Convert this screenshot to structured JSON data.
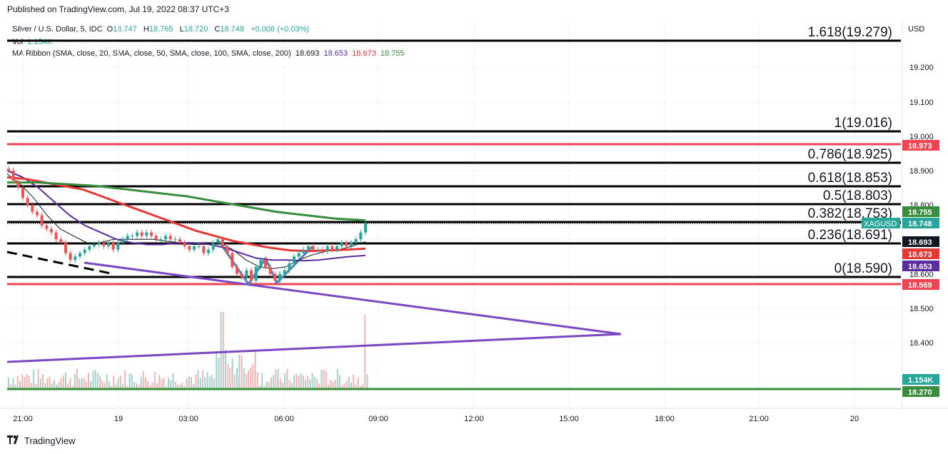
{
  "header": {
    "published": "Published on TradingView.com, Jul 19, 2022 08:37 UTC+3"
  },
  "legend": {
    "symbol": "Silver / U.S. Dollar, 5, IDC",
    "o_label": "O",
    "o": "18.747",
    "h_label": "H",
    "h": "18.765",
    "l_label": "L",
    "l": "18.720",
    "c_label": "C",
    "c": "18.748",
    "change": "+0.006 (+0.03%)",
    "vol_label": "Vol",
    "vol": "1.154K",
    "ma_label": "MA Ribbon (SMA, close, 20, SMA, close, 50, SMA, close, 100, SMA, close, 200)",
    "ma_values": [
      "18.693",
      "18.653",
      "18.673",
      "18.755"
    ]
  },
  "footer": {
    "brand": "TradingView"
  },
  "colors": {
    "up": "#26a69a",
    "down": "#ef5350",
    "ma20": "#131722",
    "ma50": "#5b2c9f",
    "ma100": "#e53935",
    "ma200": "#388e3c",
    "fib": "#000000",
    "support": "#ef4452",
    "trend": "#7b47c2",
    "pattern": "#4f7fc4"
  },
  "chart_data": {
    "type": "candlestick",
    "symbol": "XAGUSD",
    "currency": "USD",
    "timeframe": "5",
    "ylim": [
      18.2,
      19.3
    ],
    "y_ticks": [
      "19.200",
      "19.100",
      "19.000",
      "18.900",
      "18.800",
      "18.700",
      "18.600",
      "18.500",
      "18.400"
    ],
    "x_ticks": [
      "21:00",
      "19",
      "03:00",
      "06:00",
      "09:00",
      "12:00",
      "15:00",
      "18:00",
      "21:00",
      "20"
    ],
    "fib_levels": [
      {
        "label": "1.618(19.279)",
        "price": 19.279
      },
      {
        "label": "1(19.016)",
        "price": 19.016
      },
      {
        "label": "0.786(18.925)",
        "price": 18.925
      },
      {
        "label": "0.618(18.853)",
        "price": 18.853
      },
      {
        "label": "0.5(18.803)",
        "price": 18.803
      },
      {
        "label": "0.382(18.753)",
        "price": 18.753
      },
      {
        "label": "0.236(18.691)",
        "price": 18.691
      },
      {
        "label": "0(18.590)",
        "price": 18.59
      }
    ],
    "horizontal_lines": [
      {
        "price": 18.973,
        "color": "#ef4452"
      },
      {
        "price": 18.569,
        "color": "#ef4452"
      },
      {
        "price": 18.27,
        "color": "#388e3c"
      }
    ],
    "price_tags": [
      {
        "text": "18.973",
        "price": 18.973,
        "color": "#ef4452"
      },
      {
        "text": "18.755",
        "price": 18.755,
        "color": "#388e3c"
      },
      {
        "text": "18.748",
        "price": 18.748,
        "color": "#26a69a"
      },
      {
        "text": "18.693",
        "price": 18.693,
        "color": "#131722"
      },
      {
        "text": "18.673",
        "price": 18.673,
        "color": "#e53935"
      },
      {
        "text": "18.653",
        "price": 18.653,
        "color": "#5b2c9f"
      },
      {
        "text": "18.569",
        "price": 18.569,
        "color": "#ef4452"
      },
      {
        "text": "1.154K",
        "price": 18.293,
        "color": "#26a69a"
      },
      {
        "text": "18.270",
        "price": 18.27,
        "color": "#388e3c"
      }
    ],
    "last_label": "XAGUSD",
    "close_series": [
      18.9,
      18.87,
      18.85,
      18.82,
      18.8,
      18.78,
      18.77,
      18.74,
      18.73,
      18.72,
      18.7,
      18.69,
      18.66,
      18.64,
      18.65,
      18.66,
      18.67,
      18.68,
      18.685,
      18.69,
      18.68,
      18.69,
      18.67,
      18.69,
      18.7,
      18.71,
      18.71,
      18.72,
      18.71,
      18.72,
      18.71,
      18.7,
      18.7,
      18.71,
      18.7,
      18.7,
      18.69,
      18.68,
      18.67,
      18.68,
      18.68,
      18.66,
      18.67,
      18.69,
      18.7,
      18.68,
      18.66,
      18.62,
      18.6,
      18.59,
      18.61,
      18.58,
      18.62,
      18.64,
      18.62,
      18.6,
      18.58,
      18.6,
      18.61,
      18.63,
      18.65,
      18.66,
      18.67,
      18.68,
      18.67,
      18.67,
      18.665,
      18.68,
      18.67,
      18.68,
      18.69,
      18.68,
      18.69,
      18.7,
      18.72,
      18.748
    ],
    "ma_series": {
      "ma20": [
        18.89,
        18.86,
        18.82,
        18.77,
        18.73,
        18.71,
        18.69,
        18.69,
        18.7,
        18.7,
        18.7,
        18.7,
        18.695,
        18.69,
        18.685,
        18.685,
        18.69,
        18.67,
        18.64,
        18.62,
        18.615,
        18.62,
        18.64,
        18.655,
        18.665,
        18.67,
        18.68,
        18.693
      ],
      "ma50": [
        18.9,
        18.88,
        18.85,
        18.81,
        18.77,
        18.74,
        18.72,
        18.7,
        18.69,
        18.685,
        18.685,
        18.69,
        18.69,
        18.685,
        18.675,
        18.66,
        18.645,
        18.64,
        18.64,
        18.638,
        18.64,
        18.645,
        18.65,
        18.653
      ],
      "ma100": [
        18.88,
        18.875,
        18.865,
        18.855,
        18.845,
        18.825,
        18.805,
        18.785,
        18.765,
        18.745,
        18.725,
        18.71,
        18.695,
        18.685,
        18.675,
        18.668,
        18.666,
        18.668,
        18.67,
        18.673
      ],
      "ma200": [
        18.865,
        18.865,
        18.86,
        18.855,
        18.845,
        18.835,
        18.825,
        18.81,
        18.795,
        18.78,
        18.77,
        18.76,
        18.755
      ]
    },
    "volume_note": "volume bars shown at bottom of pane"
  }
}
